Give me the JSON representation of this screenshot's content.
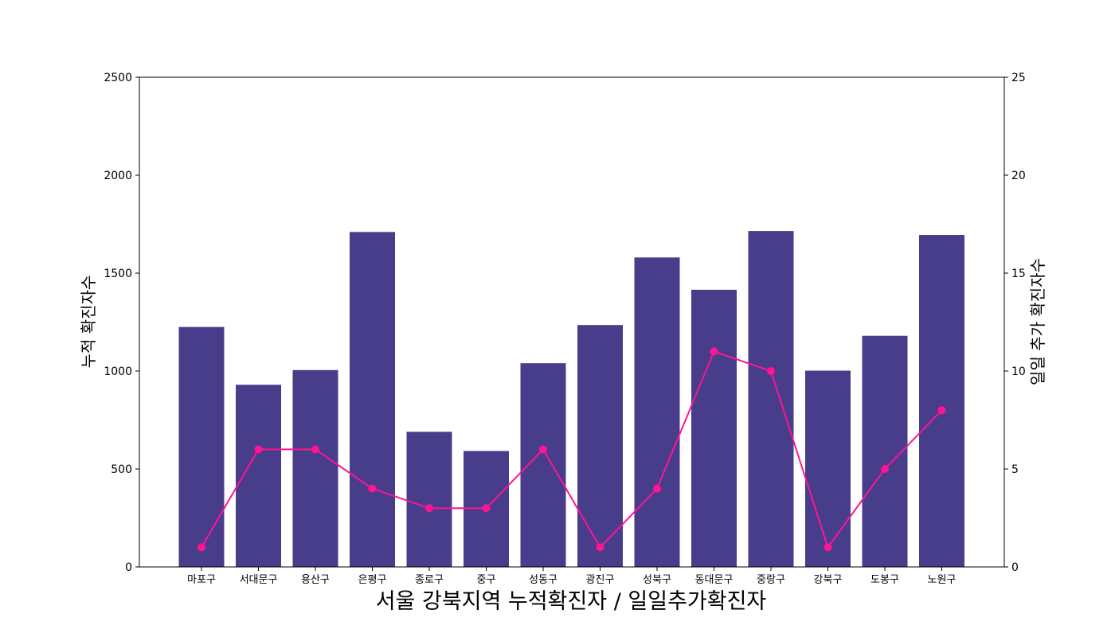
{
  "chart_data": {
    "type": "bar",
    "title": "",
    "xlabel": "서울 강북지역 누적확진자 / 일일추가확진자",
    "ylabel": "누적 확진자수",
    "y2label": "일일 추가 확진자수",
    "ylim": [
      0,
      2500
    ],
    "y2lim": [
      0,
      25
    ],
    "yticks": [
      0,
      500,
      1000,
      1500,
      2000,
      2500
    ],
    "y2ticks": [
      0,
      5,
      10,
      15,
      20,
      25
    ],
    "grid": false,
    "categories": [
      "마포구",
      "서대문구",
      "용산구",
      "은평구",
      "종로구",
      "중구",
      "성동구",
      "광진구",
      "성북구",
      "동대문구",
      "중랑구",
      "강북구",
      "도봉구",
      "노원구"
    ],
    "series": [
      {
        "kind": "bar",
        "axis": "left",
        "color": "#483d8b",
        "values": [
          1225,
          930,
          1005,
          1710,
          690,
          592,
          1040,
          1235,
          1580,
          1415,
          1715,
          1002,
          1180,
          1695
        ]
      },
      {
        "kind": "line",
        "axis": "right",
        "color": "#ff1493",
        "values": [
          1,
          6,
          6,
          4,
          3,
          3,
          6,
          1,
          4,
          11,
          10,
          1,
          5,
          8
        ]
      }
    ]
  }
}
